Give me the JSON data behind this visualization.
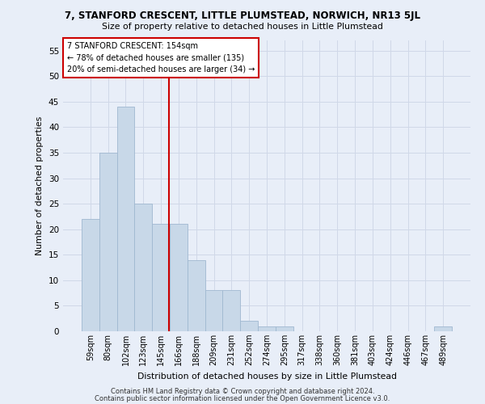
{
  "title": "7, STANFORD CRESCENT, LITTLE PLUMSTEAD, NORWICH, NR13 5JL",
  "subtitle": "Size of property relative to detached houses in Little Plumstead",
  "xlabel": "Distribution of detached houses by size in Little Plumstead",
  "ylabel": "Number of detached properties",
  "categories": [
    "59sqm",
    "80sqm",
    "102sqm",
    "123sqm",
    "145sqm",
    "166sqm",
    "188sqm",
    "209sqm",
    "231sqm",
    "252sqm",
    "274sqm",
    "295sqm",
    "317sqm",
    "338sqm",
    "360sqm",
    "381sqm",
    "403sqm",
    "424sqm",
    "446sqm",
    "467sqm",
    "489sqm"
  ],
  "values": [
    22,
    35,
    44,
    25,
    21,
    21,
    14,
    8,
    8,
    2,
    1,
    1,
    0,
    0,
    0,
    0,
    0,
    0,
    0,
    0,
    1
  ],
  "bar_color": "#c8d8e8",
  "bar_edge_color": "#a0b8d0",
  "ylim": [
    0,
    57
  ],
  "yticks": [
    0,
    5,
    10,
    15,
    20,
    25,
    30,
    35,
    40,
    45,
    50,
    55
  ],
  "property_line_x": 4.45,
  "annotation_text1": "7 STANFORD CRESCENT: 154sqm",
  "annotation_text2": "← 78% of detached houses are smaller (135)",
  "annotation_text3": "20% of semi-detached houses are larger (34) →",
  "annotation_box_color": "#ffffff",
  "annotation_box_edge": "#cc0000",
  "property_line_color": "#cc0000",
  "grid_color": "#d0d8e8",
  "footer1": "Contains HM Land Registry data © Crown copyright and database right 2024.",
  "footer2": "Contains public sector information licensed under the Open Government Licence v3.0.",
  "bg_color": "#e8eef8"
}
